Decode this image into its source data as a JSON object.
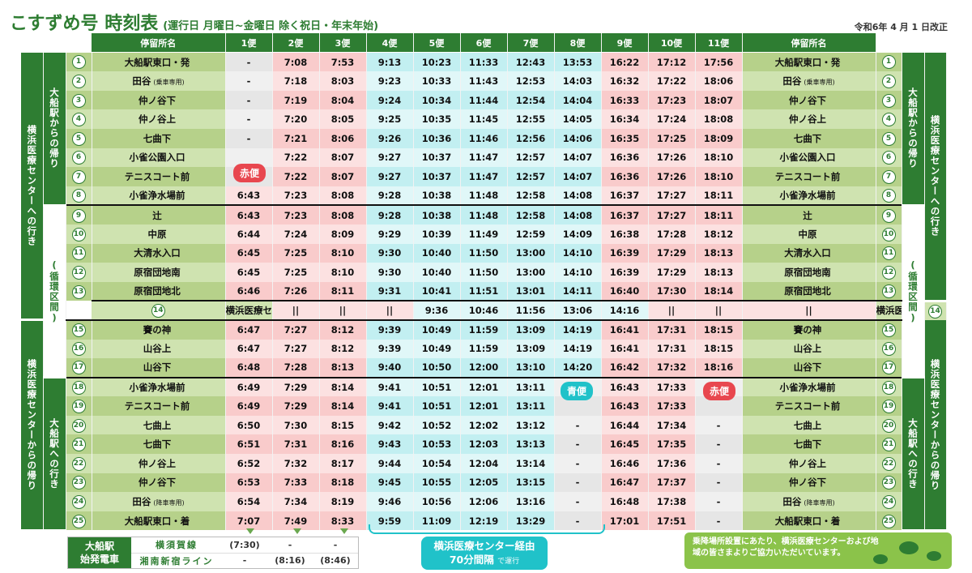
{
  "title": "こすずめ号 時刻表",
  "subtitle": "(運行日 月曜日~金曜日 除く祝日・年末年始)",
  "revision": "令和6年 4 月 1 日改正",
  "header": {
    "stop_label": "停留所名",
    "trips": [
      "1便",
      "2便",
      "3便",
      "4便",
      "5便",
      "6便",
      "7便",
      "8便",
      "9便",
      "10便",
      "11便"
    ],
    "trip_colors": [
      "red",
      "red",
      "red",
      "blue",
      "blue",
      "blue",
      "blue",
      "blue",
      "red",
      "red",
      "red"
    ]
  },
  "side_labels": {
    "left_outer_top": "横浜医療センターへの行き",
    "left_inner_top": "大船駅からの帰り",
    "left_inner_mid": "(循環区間)",
    "left_outer_bottom": "横浜医療センターからの帰り",
    "left_inner_bottom": "大船駅への行き"
  },
  "stops": [
    {
      "no": "1",
      "name": "大船駅東口・発",
      "note": "",
      "times": [
        "-",
        "7:08",
        "7:53",
        "9:13",
        "10:23",
        "11:33",
        "12:43",
        "13:53",
        "16:22",
        "17:12",
        "17:56"
      ]
    },
    {
      "no": "2",
      "name": "田谷",
      "note": "(乗車専用)",
      "times": [
        "-",
        "7:18",
        "8:03",
        "9:23",
        "10:33",
        "11:43",
        "12:53",
        "14:03",
        "16:32",
        "17:22",
        "18:06"
      ]
    },
    {
      "no": "3",
      "name": "仲ノ谷下",
      "note": "",
      "times": [
        "-",
        "7:19",
        "8:04",
        "9:24",
        "10:34",
        "11:44",
        "12:54",
        "14:04",
        "16:33",
        "17:23",
        "18:07"
      ]
    },
    {
      "no": "4",
      "name": "仲ノ谷上",
      "note": "",
      "times": [
        "-",
        "7:20",
        "8:05",
        "9:25",
        "10:35",
        "11:45",
        "12:55",
        "14:05",
        "16:34",
        "17:24",
        "18:08"
      ]
    },
    {
      "no": "5",
      "name": "七曲下",
      "note": "",
      "times": [
        "-",
        "7:21",
        "8:06",
        "9:26",
        "10:36",
        "11:46",
        "12:56",
        "14:06",
        "16:35",
        "17:25",
        "18:09"
      ]
    },
    {
      "no": "6",
      "name": "小雀公園入口",
      "note": "",
      "times": [
        "",
        "7:22",
        "8:07",
        "9:27",
        "10:37",
        "11:47",
        "12:57",
        "14:07",
        "16:36",
        "17:26",
        "18:10"
      ]
    },
    {
      "no": "7",
      "name": "テニスコート前",
      "note": "",
      "times": [
        "",
        "7:22",
        "8:07",
        "9:27",
        "10:37",
        "11:47",
        "12:57",
        "14:07",
        "16:36",
        "17:26",
        "18:10"
      ]
    },
    {
      "no": "8",
      "name": "小雀浄水場前",
      "note": "",
      "times": [
        "6:43",
        "7:23",
        "8:08",
        "9:28",
        "10:38",
        "11:48",
        "12:58",
        "14:08",
        "16:37",
        "17:27",
        "18:11"
      ]
    },
    {
      "no": "9",
      "name": "辻",
      "note": "",
      "times": [
        "6:43",
        "7:23",
        "8:08",
        "9:28",
        "10:38",
        "11:48",
        "12:58",
        "14:08",
        "16:37",
        "17:27",
        "18:11"
      ]
    },
    {
      "no": "10",
      "name": "中原",
      "note": "",
      "times": [
        "6:44",
        "7:24",
        "8:09",
        "9:29",
        "10:39",
        "11:49",
        "12:59",
        "14:09",
        "16:38",
        "17:28",
        "18:12"
      ]
    },
    {
      "no": "11",
      "name": "大清水入口",
      "note": "",
      "times": [
        "6:45",
        "7:25",
        "8:10",
        "9:30",
        "10:40",
        "11:50",
        "13:00",
        "14:10",
        "16:39",
        "17:29",
        "18:13"
      ]
    },
    {
      "no": "12",
      "name": "原宿団地南",
      "note": "",
      "times": [
        "6:45",
        "7:25",
        "8:10",
        "9:30",
        "10:40",
        "11:50",
        "13:00",
        "14:10",
        "16:39",
        "17:29",
        "18:13"
      ]
    },
    {
      "no": "13",
      "name": "原宿団地北",
      "note": "",
      "times": [
        "6:46",
        "7:26",
        "8:11",
        "9:31",
        "10:41",
        "11:51",
        "13:01",
        "14:11",
        "16:40",
        "17:30",
        "18:14"
      ]
    },
    {
      "no": "14",
      "name": "横浜医療センター",
      "note": "",
      "times": [
        "||",
        "||",
        "||",
        "9:36",
        "10:46",
        "11:56",
        "13:06",
        "14:16",
        "||",
        "||",
        "||"
      ]
    },
    {
      "no": "15",
      "name": "賽の神",
      "note": "",
      "times": [
        "6:47",
        "7:27",
        "8:12",
        "9:39",
        "10:49",
        "11:59",
        "13:09",
        "14:19",
        "16:41",
        "17:31",
        "18:15"
      ]
    },
    {
      "no": "16",
      "name": "山谷上",
      "note": "",
      "times": [
        "6:47",
        "7:27",
        "8:12",
        "9:39",
        "10:49",
        "11:59",
        "13:09",
        "14:19",
        "16:41",
        "17:31",
        "18:15"
      ]
    },
    {
      "no": "17",
      "name": "山谷下",
      "note": "",
      "times": [
        "6:48",
        "7:28",
        "8:13",
        "9:40",
        "10:50",
        "12:00",
        "13:10",
        "14:20",
        "16:42",
        "17:32",
        "18:16"
      ]
    },
    {
      "no": "18",
      "name": "小雀浄水場前",
      "note": "",
      "times": [
        "6:49",
        "7:29",
        "8:14",
        "9:41",
        "10:51",
        "12:01",
        "13:11",
        "",
        "16:43",
        "17:33",
        ""
      ]
    },
    {
      "no": "19",
      "name": "テニスコート前",
      "note": "",
      "times": [
        "6:49",
        "7:29",
        "8:14",
        "9:41",
        "10:51",
        "12:01",
        "13:11",
        "",
        "16:43",
        "17:33",
        ""
      ]
    },
    {
      "no": "20",
      "name": "七曲上",
      "note": "",
      "times": [
        "6:50",
        "7:30",
        "8:15",
        "9:42",
        "10:52",
        "12:02",
        "13:12",
        "-",
        "16:44",
        "17:34",
        "-"
      ]
    },
    {
      "no": "21",
      "name": "七曲下",
      "note": "",
      "times": [
        "6:51",
        "7:31",
        "8:16",
        "9:43",
        "10:53",
        "12:03",
        "13:13",
        "-",
        "16:45",
        "17:35",
        "-"
      ]
    },
    {
      "no": "22",
      "name": "仲ノ谷上",
      "note": "",
      "times": [
        "6:52",
        "7:32",
        "8:17",
        "9:44",
        "10:54",
        "12:04",
        "13:14",
        "-",
        "16:46",
        "17:36",
        "-"
      ]
    },
    {
      "no": "23",
      "name": "仲ノ谷下",
      "note": "",
      "times": [
        "6:53",
        "7:33",
        "8:18",
        "9:45",
        "10:55",
        "12:05",
        "13:15",
        "-",
        "16:47",
        "17:37",
        "-"
      ]
    },
    {
      "no": "24",
      "name": "田谷",
      "note": "(降車専用)",
      "times": [
        "6:54",
        "7:34",
        "8:19",
        "9:46",
        "10:56",
        "12:06",
        "13:16",
        "-",
        "16:48",
        "17:38",
        "-"
      ]
    },
    {
      "no": "25",
      "name": "大船駅東口・着",
      "note": "",
      "times": [
        "7:07",
        "7:49",
        "8:33",
        "9:59",
        "11:09",
        "12:19",
        "13:29",
        "-",
        "17:01",
        "17:51",
        "-"
      ]
    }
  ],
  "bubbles": {
    "red_trip": "赤便",
    "blue_trip": "青便"
  },
  "departure": {
    "title_line1": "大船駅",
    "title_line2": "始発電車",
    "rows": [
      {
        "line": "横須賀線",
        "values": [
          "(7:30)",
          "-",
          "-"
        ]
      },
      {
        "line": "湘南新宿ライン",
        "values": [
          "-",
          "(8:16)",
          "(8:46)"
        ]
      }
    ]
  },
  "via": {
    "line1": "横浜医療センター経由",
    "line2": "70分間隔",
    "line2_small": "で運行"
  },
  "notice": "乗降場所設置にあたり、横浜医療センターおよび地域の皆さまよりご協力いただいています。",
  "colors": {
    "green": "#2e7d32",
    "red": "#e8474f",
    "blue": "#20c2c9"
  }
}
